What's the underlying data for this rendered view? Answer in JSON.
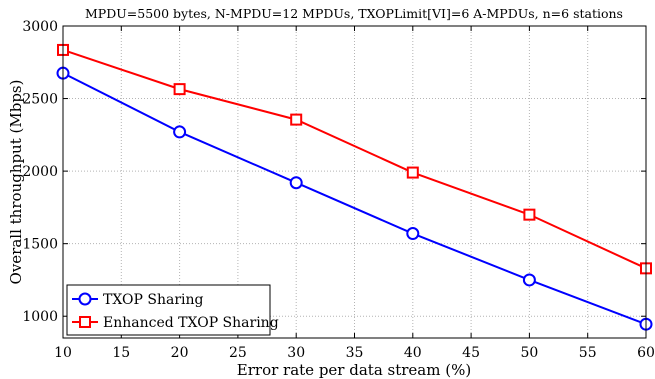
{
  "chart_data": {
    "type": "line",
    "title": "MPDU=5500 bytes, N-MPDU=12 MPDUs, TXOPLimit[VI]=6 A-MPDUs, n=6 stations",
    "xlabel": "Error rate per data stream (%)",
    "ylabel": "Overall throughput (Mbps)",
    "xlim": [
      10,
      60
    ],
    "ylim": [
      850,
      3000
    ],
    "xticks": [
      10,
      15,
      20,
      25,
      30,
      35,
      40,
      45,
      50,
      55,
      60
    ],
    "yticks": [
      1000,
      1500,
      2000,
      2500,
      3000
    ],
    "grid": true,
    "legend_position": "bottom-left",
    "x": [
      10,
      20,
      30,
      40,
      50,
      60
    ],
    "series": [
      {
        "name": "TXOP Sharing",
        "color": "#0000ff",
        "marker": "circle",
        "values": [
          2675,
          2270,
          1920,
          1570,
          1250,
          945
        ]
      },
      {
        "name": "Enhanced TXOP Sharing",
        "color": "#ff0000",
        "marker": "square",
        "values": [
          2835,
          2565,
          2355,
          1990,
          1700,
          1330
        ]
      }
    ]
  }
}
